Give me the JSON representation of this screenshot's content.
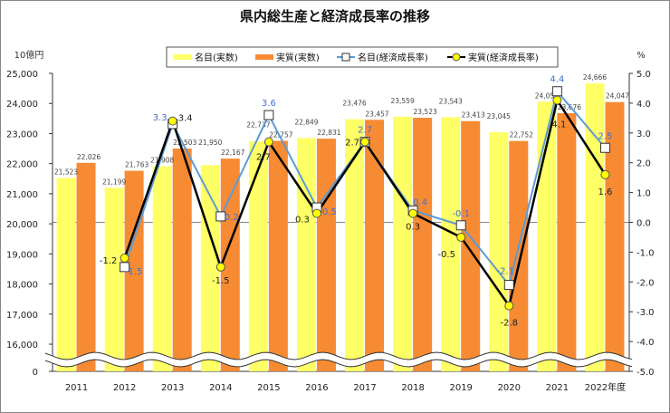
{
  "chart_data": {
    "type": "bar+line",
    "title": "県内総生産と経済成長率の推移",
    "left_axis_unit": "10億円",
    "right_axis_unit": "%",
    "categories": [
      "2011",
      "2012",
      "2013",
      "2014",
      "2015",
      "2016",
      "2017",
      "2018",
      "2019",
      "2020",
      "2021",
      "2022年度"
    ],
    "left_ticks": [
      "25,000",
      "24,000",
      "23,000",
      "22,000",
      "21,000",
      "20,000",
      "19,000",
      "18,000",
      "17,000",
      "16,000",
      "0"
    ],
    "right_ticks": [
      "5.0",
      "4.0",
      "3.0",
      "2.0",
      "1.0",
      "0.0",
      "-1.0",
      "-2.0",
      "-3.0",
      "-4.0",
      "-5.0"
    ],
    "left_range_shown": [
      16000,
      25000
    ],
    "right_range": [
      -5.0,
      5.0
    ],
    "axis_break": true,
    "legend_position": "top",
    "series": [
      {
        "name": "名目(実数)",
        "kind": "bar",
        "axis": "left",
        "color": "#FFFF66",
        "values": [
          21523,
          21199,
          21908,
          21950,
          22737,
          22849,
          23476,
          23559,
          23543,
          23045,
          24058,
          24666
        ],
        "labels": [
          "21,523",
          "21,199",
          "21,908",
          "21,950",
          "22,737",
          "22,849",
          "23,476",
          "23,559",
          "23,543",
          "23,045",
          "24,058",
          "24,666"
        ]
      },
      {
        "name": "実質(実数)",
        "kind": "bar",
        "axis": "left",
        "color": "#F68B33",
        "values": [
          22026,
          21763,
          22503,
          22167,
          22757,
          22831,
          23457,
          23523,
          23413,
          22752,
          23676,
          24047
        ],
        "labels": [
          "22,026",
          "21,763",
          "22,503",
          "22,167",
          "22,757",
          "22,831",
          "23,457",
          "23,523",
          "23,413",
          "22,752",
          "23,676",
          "24,047"
        ]
      },
      {
        "name": "名目(経済成長率)",
        "kind": "line",
        "axis": "right",
        "color": "#5B9BD5",
        "marker": "square",
        "values": [
          null,
          -1.5,
          3.3,
          0.2,
          3.6,
          0.5,
          2.7,
          0.4,
          -0.1,
          -2.1,
          4.4,
          2.5
        ],
        "labels": [
          "",
          "-1.5",
          "3.3",
          "0.2",
          "3.6",
          "0.5",
          "2.7",
          "0.4",
          "-0.1",
          "-2.1",
          "4.4",
          "2.5"
        ]
      },
      {
        "name": "実質(経済成長率)",
        "kind": "line",
        "axis": "right",
        "color": "#000000",
        "marker": "circle",
        "values": [
          null,
          -1.2,
          3.4,
          -1.5,
          2.7,
          0.3,
          2.7,
          0.3,
          -0.5,
          -2.8,
          4.1,
          1.6
        ],
        "labels": [
          "",
          "-1.2",
          "3.4",
          "-1.5",
          "2.7",
          "0.3",
          "2.7",
          "0.3",
          "-0.5",
          "-2.8",
          "4.1",
          "1.6"
        ]
      }
    ]
  }
}
